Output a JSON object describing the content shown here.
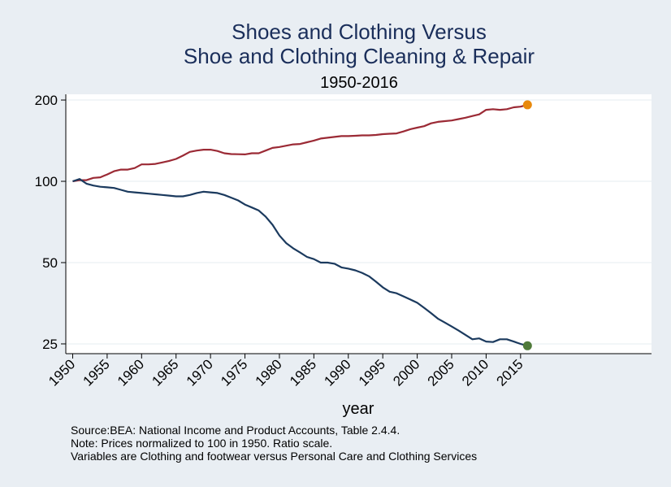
{
  "chart_data": {
    "type": "line",
    "title": "Shoes and Clothing Versus",
    "title_line2": "Shoe and Clothing Cleaning & Repair",
    "subtitle": "1950-2016",
    "xlabel": "year",
    "ylabel": "",
    "y_scale": "log",
    "ylim": [
      23,
      210
    ],
    "xlim": [
      1949,
      2034
    ],
    "y_ticks": [
      25,
      50,
      100,
      200
    ],
    "x_ticks": [
      1950,
      1955,
      1960,
      1965,
      1970,
      1975,
      1980,
      1985,
      1990,
      1995,
      2000,
      2005,
      2010,
      2015
    ],
    "x": [
      1950,
      1951,
      1952,
      1953,
      1954,
      1955,
      1956,
      1957,
      1958,
      1959,
      1960,
      1961,
      1962,
      1963,
      1964,
      1965,
      1966,
      1967,
      1968,
      1969,
      1970,
      1971,
      1972,
      1973,
      1974,
      1975,
      1976,
      1977,
      1978,
      1979,
      1980,
      1981,
      1982,
      1983,
      1984,
      1985,
      1986,
      1987,
      1988,
      1989,
      1990,
      1991,
      1992,
      1993,
      1994,
      1995,
      1996,
      1997,
      1998,
      1999,
      2000,
      2001,
      2002,
      2003,
      2004,
      2005,
      2006,
      2007,
      2008,
      2009,
      2010,
      2011,
      2012,
      2013,
      2014,
      2015,
      2016
    ],
    "series": [
      {
        "name": "Shoe and Clothing Cleaning & Repair",
        "color": "#9b2a35",
        "end_marker_color": "#e8890c",
        "values": [
          100,
          101,
          101,
          103,
          103.5,
          106,
          109,
          110.5,
          110.5,
          112,
          115.5,
          115.5,
          116,
          117.5,
          119,
          121,
          124.5,
          128.5,
          130,
          131,
          131,
          129.5,
          127,
          126.2,
          126,
          125.8,
          127,
          127,
          130,
          133,
          134,
          135.5,
          137,
          137.5,
          139.5,
          141.5,
          144,
          145,
          146,
          147,
          147,
          147.5,
          148,
          148,
          148.5,
          149.5,
          150,
          150.5,
          153,
          156,
          158,
          160,
          164,
          166,
          167,
          168,
          170,
          172,
          174.5,
          177,
          184,
          185,
          184,
          185,
          188,
          189,
          192
        ]
      },
      {
        "name": "Shoes and Clothing",
        "color": "#1b3a5e",
        "end_marker_color": "#4f7a3a",
        "values": [
          100,
          102,
          98,
          96.5,
          95.5,
          95,
          94.5,
          93,
          91.5,
          91,
          90.5,
          90,
          89.5,
          89,
          88.5,
          88,
          88,
          89,
          90.5,
          91.5,
          91,
          90.5,
          89,
          87,
          85,
          82,
          80,
          78,
          74,
          69,
          63,
          59,
          56.5,
          54.5,
          52.5,
          51.5,
          50,
          50,
          49.5,
          48,
          47.5,
          46.8,
          45.8,
          44.5,
          42.5,
          40.5,
          39,
          38.5,
          37.5,
          36.5,
          35.5,
          34,
          32.5,
          31,
          30,
          29,
          28,
          27,
          26,
          26.2,
          25.5,
          25.4,
          26,
          26,
          25.5,
          25,
          24.6
        ]
      }
    ]
  },
  "notes": {
    "line1": "Source:BEA: National Income and Product Accounts, Table 2.4.4.",
    "line2": "Note: Prices normalized to 100 in 1950. Ratio scale.",
    "line3": "Variables are Clothing and footwear versus Personal Care and Clothing Services"
  },
  "colors": {
    "background": "#e9eef3",
    "plot_background": "#ffffff",
    "gridline": "#e6ecf2",
    "title": "#1a2e5a"
  }
}
